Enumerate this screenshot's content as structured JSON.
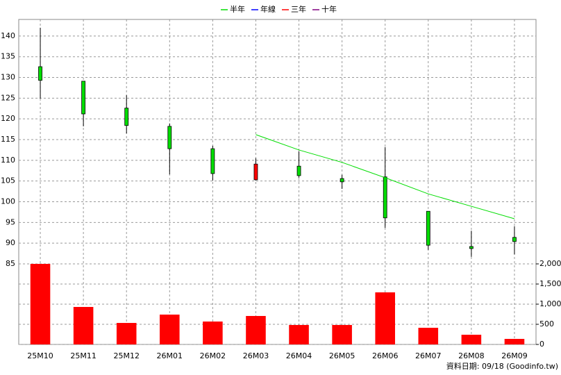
{
  "chart_data": {
    "type": "candlestick",
    "categories": [
      "25M10",
      "25M11",
      "25M12",
      "26M01",
      "26M02",
      "26M03",
      "26M04",
      "26M05",
      "26M06",
      "26M07",
      "26M08",
      "26M09"
    ],
    "open": [
      132.6,
      129.1,
      122.6,
      118.2,
      112.8,
      105.3,
      108.6,
      105.6,
      106.0,
      97.7,
      89.2,
      91.4
    ],
    "high": [
      142.0,
      129.1,
      125.7,
      118.9,
      113.5,
      110.5,
      112.2,
      106.5,
      113.2,
      97.7,
      93.0,
      94.1
    ],
    "low": [
      124.9,
      118.2,
      116.5,
      106.6,
      105.1,
      105.1,
      105.8,
      103.1,
      93.7,
      88.4,
      86.7,
      87.3
    ],
    "close": [
      129.3,
      121.2,
      118.4,
      112.8,
      106.8,
      109.1,
      106.3,
      104.8,
      96.1,
      89.5,
      88.7,
      90.4
    ],
    "up_color": "#ff0000",
    "down_color": "#00dd00",
    "series": [
      {
        "name": "半年",
        "color": "#00dd00",
        "values": [
          null,
          null,
          null,
          null,
          null,
          116.2,
          112.5,
          109.5,
          105.8,
          101.9,
          98.9,
          95.9
        ]
      },
      {
        "name": "年線",
        "color": "#0000ff",
        "values": [
          null,
          null,
          null,
          null,
          null,
          null,
          null,
          null,
          null,
          null,
          null,
          null
        ]
      },
      {
        "name": "三年",
        "color": "#ff0000",
        "values": [
          null,
          null,
          null,
          null,
          null,
          null,
          null,
          null,
          null,
          null,
          null,
          null
        ]
      },
      {
        "name": "十年",
        "color": "#800080",
        "values": [
          null,
          null,
          null,
          null,
          null,
          null,
          null,
          null,
          null,
          null,
          null,
          null
        ]
      }
    ],
    "volume": {
      "color": "#ff0000",
      "axis": "y2",
      "values": [
        2000,
        931,
        534,
        741,
        569,
        707,
        483,
        483,
        1293,
        414,
        241,
        138
      ]
    },
    "ylim": [
      85,
      144
    ],
    "yticks": [
      85,
      90,
      95,
      100,
      105,
      110,
      115,
      120,
      125,
      130,
      135,
      140
    ],
    "y2lim": [
      0,
      2000
    ],
    "y2ticks": [
      0,
      500,
      {
        "value": 1000,
        "label": "1,000"
      },
      {
        "value": 1500,
        "label": "1,500"
      },
      {
        "value": 2000,
        "label": "2,000"
      }
    ],
    "grid": true,
    "legend": "top",
    "note": "資料日期: 09/18  (Goodinfo.tw)"
  }
}
